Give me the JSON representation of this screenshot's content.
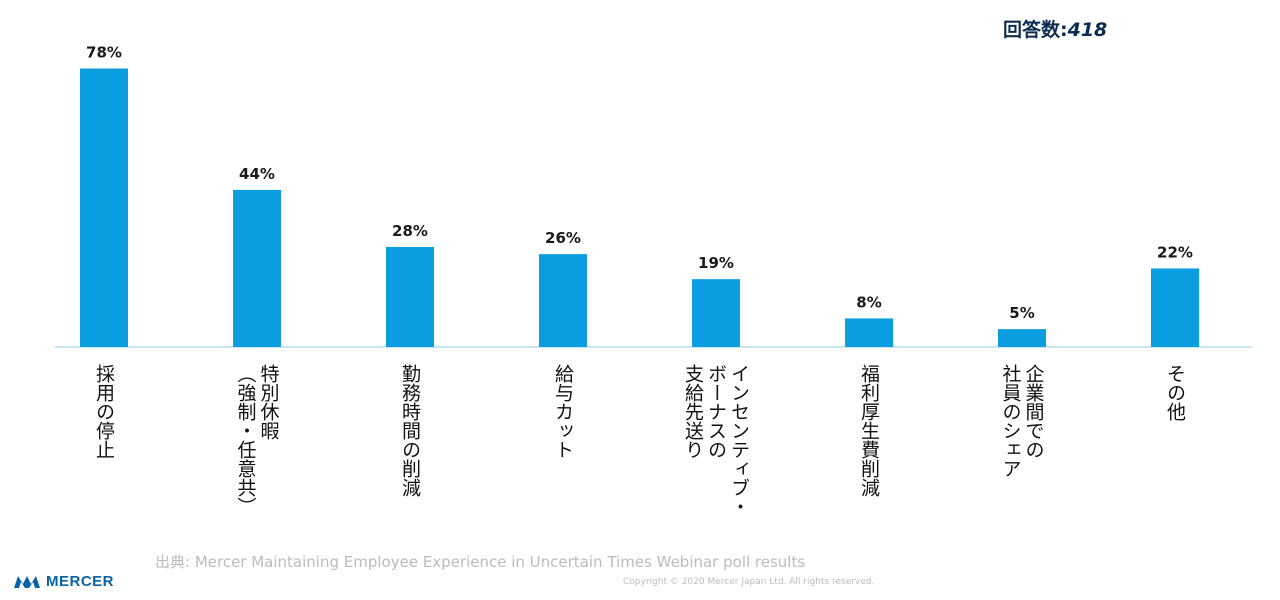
{
  "respondents": {
    "label": "回答数:",
    "count": "418"
  },
  "source": "出典: Mercer Maintaining Employee Experience in Uncertain Times Webinar poll results",
  "copyright": "Copyright © 2020 Mercer Japan Ltd. All rights reserved.",
  "logo": {
    "text": "MERCER",
    "icon": "mercer-logo-icon"
  },
  "colors": {
    "bar": "#0a9ee0",
    "baseline": "#b5dff3",
    "text_dark": "#0d2b4f"
  },
  "chart_data": {
    "type": "bar",
    "title": "",
    "xlabel": "",
    "ylabel": "",
    "ylim": [
      0,
      80
    ],
    "grid": false,
    "categories": [
      "採用の停止",
      "特別休暇\n（強制・任意共）",
      "勤務時間の削減",
      "給与カット",
      "インセンティブ・\nボーナスの\n支給先送り",
      "福利厚生費削減",
      "企業間での\n社員のシェア",
      "その他"
    ],
    "values": [
      78,
      44,
      28,
      26,
      19,
      8,
      5,
      22
    ],
    "value_labels": [
      "78%",
      "44%",
      "28%",
      "26%",
      "19%",
      "8%",
      "5%",
      "22%"
    ]
  }
}
